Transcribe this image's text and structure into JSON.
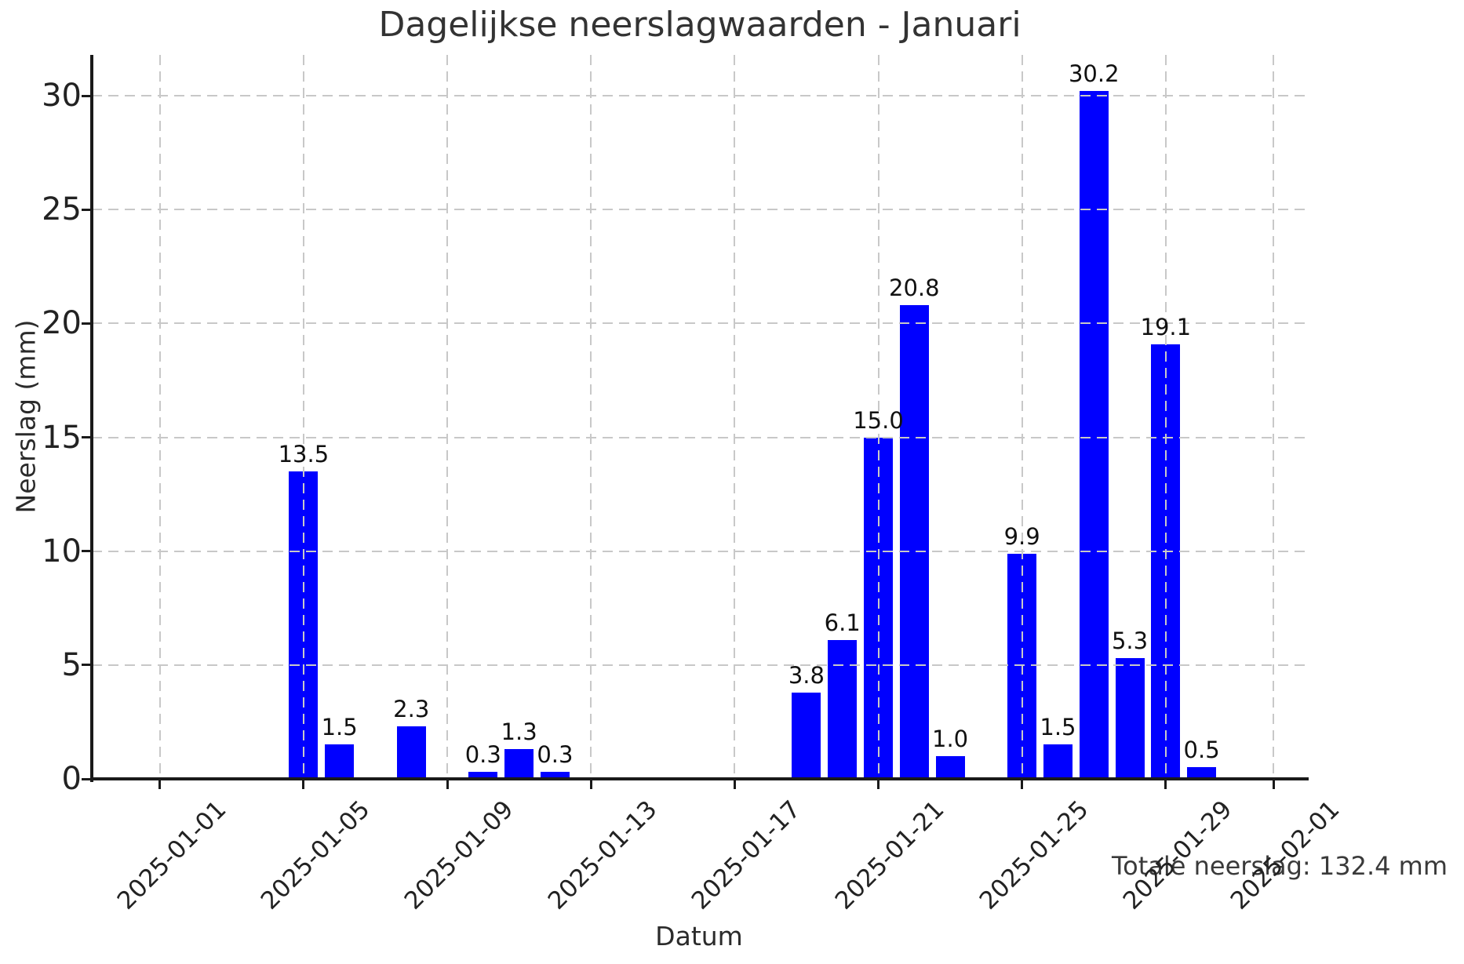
{
  "chart_data": {
    "type": "bar",
    "title": "Dagelijkse neerslagwaarden - Januari",
    "xlabel": "Datum",
    "ylabel": "Neerslag (mm)",
    "annotation": "Totale neerslag: 132.4 mm",
    "grid": true,
    "grid_style": "dashed",
    "legend": false,
    "y_ticks": [
      0,
      5,
      10,
      15,
      20,
      25,
      30
    ],
    "ylim": [
      0,
      31.8
    ],
    "x_ticks": [
      "2025-01-01",
      "2025-01-05",
      "2025-01-09",
      "2025-01-13",
      "2025-01-17",
      "2025-01-21",
      "2025-01-25",
      "2025-01-29",
      "2025-02-01"
    ],
    "bars": [
      {
        "date": "2025-01-05",
        "value": 13.5
      },
      {
        "date": "2025-01-06",
        "value": 1.5
      },
      {
        "date": "2025-01-08",
        "value": 2.3
      },
      {
        "date": "2025-01-10",
        "value": 0.3
      },
      {
        "date": "2025-01-11",
        "value": 1.3
      },
      {
        "date": "2025-01-12",
        "value": 0.3
      },
      {
        "date": "2025-01-19",
        "value": 3.8
      },
      {
        "date": "2025-01-20",
        "value": 6.1
      },
      {
        "date": "2025-01-21",
        "value": 15.0
      },
      {
        "date": "2025-01-22",
        "value": 20.8
      },
      {
        "date": "2025-01-23",
        "value": 1.0
      },
      {
        "date": "2025-01-25",
        "value": 9.9
      },
      {
        "date": "2025-01-26",
        "value": 1.5
      },
      {
        "date": "2025-01-27",
        "value": 30.2
      },
      {
        "date": "2025-01-28",
        "value": 5.3
      },
      {
        "date": "2025-01-29",
        "value": 19.1
      },
      {
        "date": "2025-01-30",
        "value": 0.5
      }
    ],
    "total_mm": 132.4
  },
  "colors": {
    "bar": "#0000ff",
    "grid": "#c8c8c8",
    "axis": "#1a1a1a",
    "tick_text": "#222222",
    "title_text": "#333333",
    "annotation_text": "#3a3a3a",
    "background": "#ffffff"
  }
}
